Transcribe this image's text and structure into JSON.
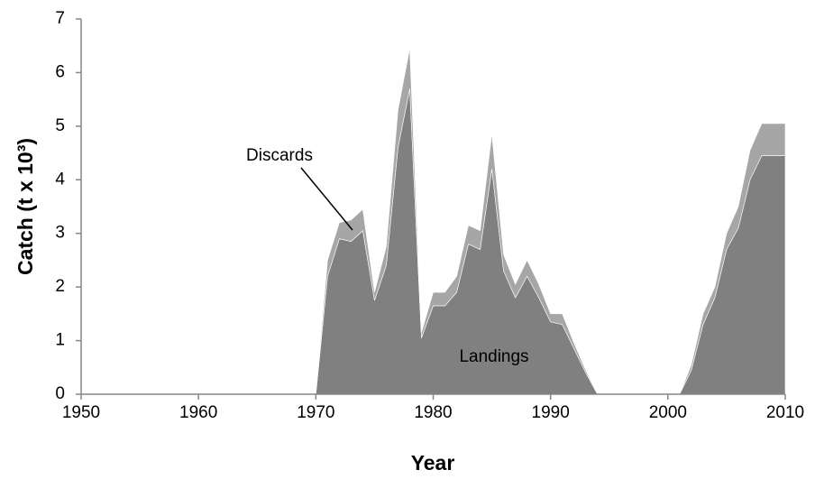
{
  "chart_data": {
    "type": "stacked_area",
    "xlabel": "Year",
    "ylabel": "Catch (t x 10³)",
    "x": [
      1950,
      1951,
      1952,
      1953,
      1954,
      1955,
      1956,
      1957,
      1958,
      1959,
      1960,
      1961,
      1962,
      1963,
      1964,
      1965,
      1966,
      1967,
      1968,
      1969,
      1970,
      1971,
      1972,
      1973,
      1974,
      1975,
      1976,
      1977,
      1978,
      1979,
      1980,
      1981,
      1982,
      1983,
      1984,
      1985,
      1986,
      1987,
      1988,
      1989,
      1990,
      1991,
      1992,
      1993,
      1994,
      1995,
      1996,
      1997,
      1998,
      1999,
      2000,
      2001,
      2002,
      2003,
      2004,
      2005,
      2006,
      2007,
      2008,
      2009,
      2010
    ],
    "series": [
      {
        "name": "Landings",
        "color": "#808080",
        "values": [
          0,
          0,
          0,
          0,
          0,
          0,
          0,
          0,
          0,
          0,
          0,
          0,
          0,
          0,
          0,
          0,
          0,
          0,
          0,
          0,
          0,
          2.2,
          2.9,
          2.85,
          3.05,
          1.75,
          2.4,
          4.6,
          5.7,
          1.05,
          1.65,
          1.65,
          1.9,
          2.8,
          2.7,
          4.2,
          2.3,
          1.8,
          2.2,
          1.8,
          1.35,
          1.3,
          0.85,
          0.4,
          0,
          0,
          0,
          0,
          0,
          0,
          0,
          0,
          0.45,
          1.3,
          1.8,
          2.7,
          3.1,
          4.0,
          4.45,
          4.45,
          4.45
        ]
      },
      {
        "name": "Discards",
        "color": "#a6a6a6",
        "values": [
          0,
          0,
          0,
          0,
          0,
          0,
          0,
          0,
          0,
          0,
          0,
          0,
          0,
          0,
          0,
          0,
          0,
          0,
          0,
          0,
          0,
          0.3,
          0.3,
          0.4,
          0.4,
          0.15,
          0.35,
          0.7,
          0.75,
          0.1,
          0.25,
          0.25,
          0.3,
          0.35,
          0.35,
          0.65,
          0.3,
          0.25,
          0.3,
          0.25,
          0.15,
          0.2,
          0.1,
          0.05,
          0,
          0,
          0,
          0,
          0,
          0,
          0,
          0,
          0.1,
          0.2,
          0.2,
          0.3,
          0.4,
          0.55,
          0.6,
          0.6,
          0.6
        ]
      }
    ],
    "xlim": [
      1950,
      2010
    ],
    "xticks": [
      1950,
      1960,
      1970,
      1980,
      1990,
      2000,
      2010
    ],
    "ylim": [
      0,
      7
    ],
    "yticks": [
      0,
      1,
      2,
      3,
      4,
      5,
      6,
      7
    ],
    "grid": false
  }
}
